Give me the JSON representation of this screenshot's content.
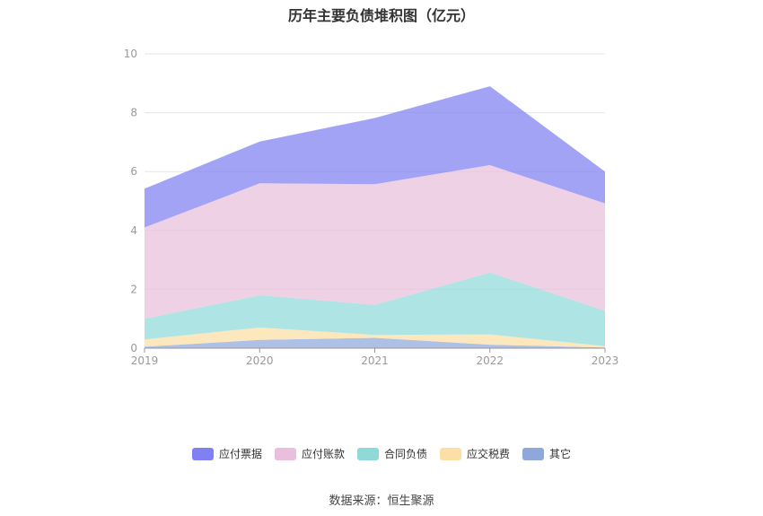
{
  "chart_data": {
    "type": "area",
    "stacked": true,
    "title": "历年主要负债堆积图（亿元）",
    "categories": [
      "2019",
      "2020",
      "2021",
      "2022",
      "2023"
    ],
    "ylim": [
      0,
      10
    ],
    "yticks": [
      0,
      2,
      4,
      6,
      8,
      10
    ],
    "grid": true,
    "legend_position": "bottom",
    "series": [
      {
        "name": "其它",
        "color": "#8fa8dc",
        "values": [
          0.05,
          0.28,
          0.35,
          0.12,
          0.02
        ]
      },
      {
        "name": "应交税费",
        "color": "#fcdfa5",
        "values": [
          0.25,
          0.42,
          0.1,
          0.35,
          0.05
        ]
      },
      {
        "name": "合同负债",
        "color": "#8fd9d9",
        "values": [
          0.7,
          1.1,
          1.02,
          2.1,
          1.2
        ]
      },
      {
        "name": "应付账款",
        "color": "#e9bfdd",
        "values": [
          3.1,
          3.8,
          4.1,
          3.65,
          3.65
        ]
      },
      {
        "name": "应付票据",
        "color": "#7f80f2",
        "values": [
          1.32,
          1.42,
          2.25,
          2.68,
          1.08
        ]
      }
    ],
    "legend_order": [
      "应付票据",
      "应付账款",
      "合同负债",
      "应交税费",
      "其它"
    ]
  },
  "source_text": "数据来源：恒生聚源"
}
